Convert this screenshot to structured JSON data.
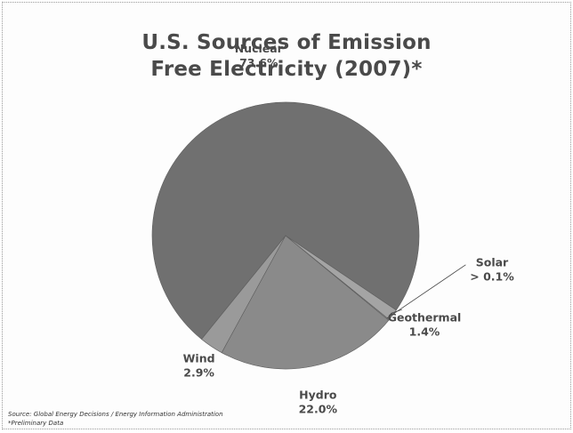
{
  "chart_data": {
    "type": "pie",
    "title": [
      "U.S. Sources of Emission",
      "Free Electricity (2007)*"
    ],
    "slices": [
      {
        "name": "Nuclear",
        "label": "73.6%",
        "value": 73.6,
        "color": "#707070"
      },
      {
        "name": "Wind",
        "label": "2.9%",
        "value": 2.9,
        "color": "#9a9a9a"
      },
      {
        "name": "Hydro",
        "label": "22.0%",
        "value": 22.0,
        "color": "#8a8a8a"
      },
      {
        "name": "Solar",
        "label": "> 0.1%",
        "value": 0.1,
        "color": "#b0b0b0"
      },
      {
        "name": "Geothermal",
        "label": "1.4%",
        "value": 1.4,
        "color": "#a4a4a4"
      }
    ],
    "notes": [
      "Source: Global Energy Decisions / Energy Information Administration",
      "*Preliminary Data"
    ]
  }
}
